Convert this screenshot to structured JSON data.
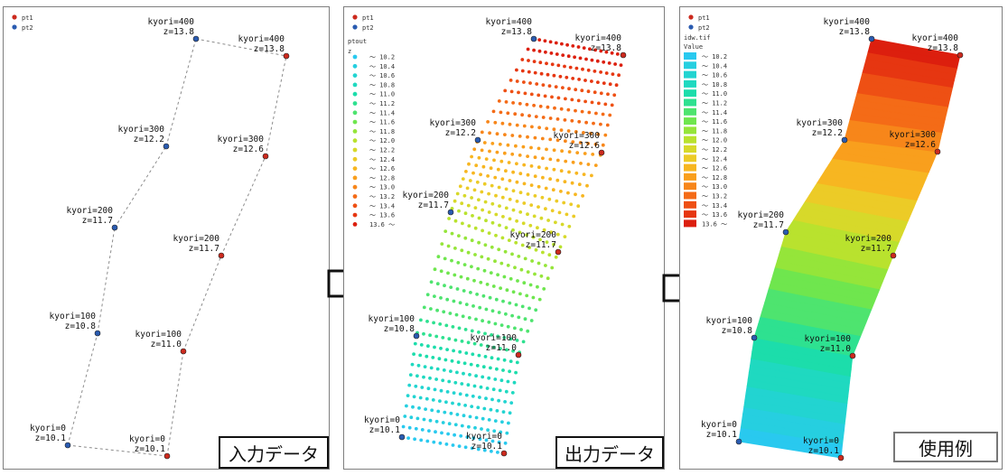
{
  "points": [
    {
      "name": "pt2",
      "kyori": "kyori=0",
      "z": "z=10.1"
    },
    {
      "name": "pt2",
      "kyori": "kyori=100",
      "z": "z=10.8"
    },
    {
      "name": "pt2",
      "kyori": "kyori=200",
      "z": "z=11.7"
    },
    {
      "name": "pt2",
      "kyori": "kyori=300",
      "z": "z=12.2"
    },
    {
      "name": "pt2",
      "kyori": "kyori=400",
      "z": "z=13.8"
    },
    {
      "name": "pt1",
      "kyori": "kyori=0",
      "z": "z=10.1"
    },
    {
      "name": "pt1",
      "kyori": "kyori=100",
      "z": "z=11.0"
    },
    {
      "name": "pt1",
      "kyori": "kyori=200",
      "z": "z=11.7"
    },
    {
      "name": "pt1",
      "kyori": "kyori=300",
      "z": "z=12.6"
    },
    {
      "name": "pt1",
      "kyori": "kyori=400",
      "z": "z=13.8"
    }
  ],
  "legend_common": {
    "pt1": "pt1",
    "pt2": "pt2",
    "pt1_color": "#cc2a1e",
    "pt2_color": "#2a5bb0"
  },
  "panel2_legend": {
    "title": "ptout",
    "field": "z",
    "classes": [
      "～ 10.2",
      "～ 10.4",
      "～ 10.6",
      "～ 10.8",
      "～ 11.0",
      "～ 11.2",
      "～ 11.4",
      "～ 11.6",
      "～ 11.8",
      "～ 12.0",
      "～ 12.2",
      "～ 12.4",
      "～ 12.6",
      "～ 12.8",
      "～ 13.0",
      "～ 13.2",
      "～ 13.4",
      "～ 13.6",
      "13.6 ～"
    ]
  },
  "panel3_legend": {
    "title": "idw.tif",
    "field": "Value",
    "classes": [
      "～ 10.2",
      "～ 10.4",
      "～ 10.6",
      "～ 10.8",
      "～ 11.0",
      "～ 11.2",
      "～ 11.4",
      "～ 11.6",
      "～ 11.8",
      "～ 12.0",
      "～ 12.2",
      "～ 12.4",
      "～ 12.6",
      "～ 12.8",
      "～ 13.0",
      "～ 13.2",
      "～ 13.4",
      "～ 13.6",
      "13.6 ～"
    ]
  },
  "ramp": [
    "#29c9ef",
    "#26cfe0",
    "#22d4d1",
    "#1fd9c0",
    "#1cddab",
    "#2ee190",
    "#4ee46f",
    "#6fe64e",
    "#95e53a",
    "#b9e22e",
    "#d7d92a",
    "#eccb27",
    "#f7b621",
    "#f99f1d",
    "#f7861a",
    "#f46b17",
    "#ee5014",
    "#e63611",
    "#dc1f0e"
  ],
  "captions": {
    "input": "入力データ",
    "output": "出力データ",
    "example": "使用例"
  }
}
